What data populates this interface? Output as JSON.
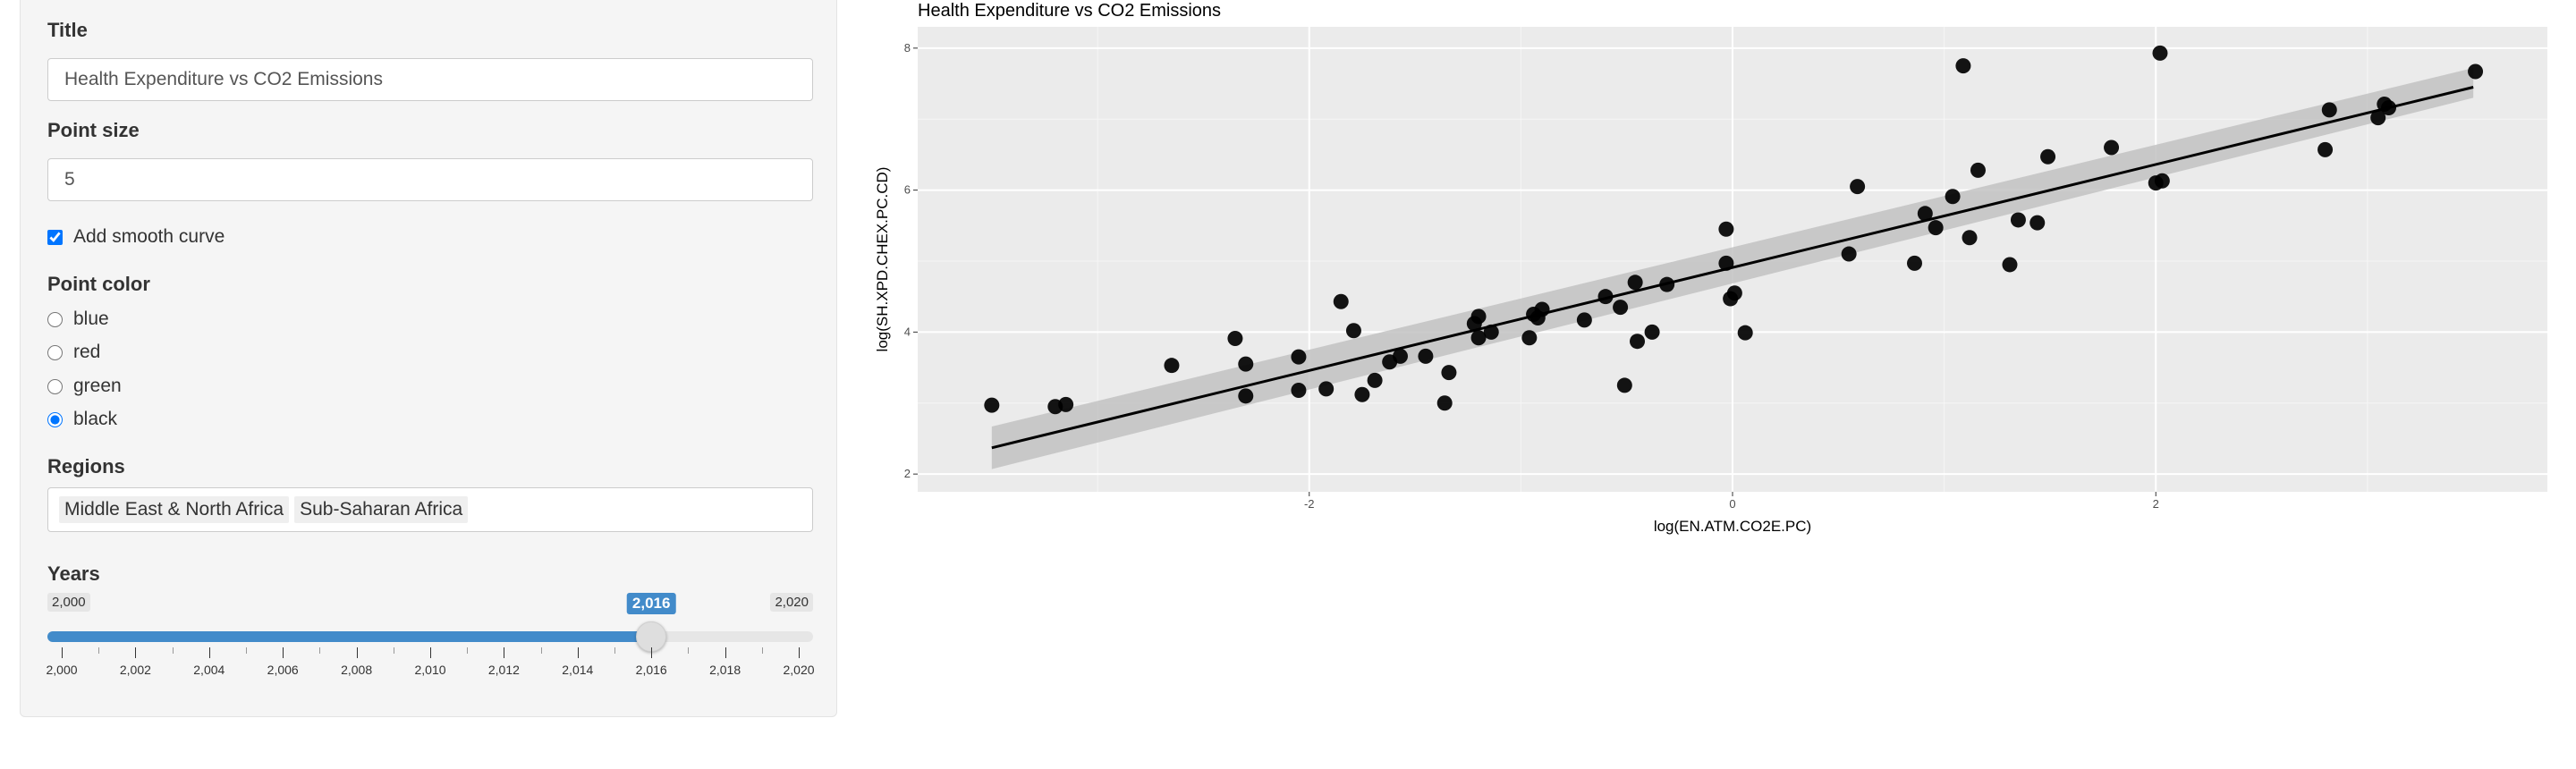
{
  "sidebar": {
    "title_label": "Title",
    "title_value": "Health Expenditure vs CO2 Emissions",
    "point_size_label": "Point size",
    "point_size_value": "5",
    "smooth_label": "Add smooth curve",
    "smooth_checked": true,
    "color_label": "Point color",
    "colors": [
      "blue",
      "red",
      "green",
      "black"
    ],
    "color_selected": "black",
    "regions_label": "Regions",
    "regions": [
      "Middle East & North Africa",
      "Sub-Saharan Africa"
    ],
    "years_label": "Years",
    "years_min": "2,000",
    "years_max": "2,020",
    "years_value": "2,016",
    "year_selected": 2016,
    "year_range": [
      2000,
      2020
    ],
    "year_ticks": [
      "2,000",
      "2,002",
      "2,004",
      "2,006",
      "2,008",
      "2,010",
      "2,012",
      "2,014",
      "2,016",
      "2,018",
      "2,020"
    ]
  },
  "chart_data": {
    "type": "scatter",
    "title": "Health Expenditure vs CO2 Emissions",
    "xlabel": "log(EN.ATM.CO2E.PC)",
    "ylabel": "log(SH.XPD.CHEX.PC.CD)",
    "xlim": [
      -3.85,
      3.85
    ],
    "ylim": [
      1.75,
      8.3
    ],
    "xticks": [
      -2,
      0,
      2
    ],
    "xticklabels": [
      "-2",
      "0",
      "2"
    ],
    "yticks": [
      2,
      4,
      6,
      8
    ],
    "yticklabels": [
      "2",
      "4",
      "6",
      "8"
    ],
    "grid": true,
    "point_color": "#000000",
    "background": "#ebebeb",
    "smooth": {
      "method": "lm",
      "x": [
        -3.5,
        3.5
      ],
      "y": [
        2.37,
        7.45
      ],
      "se_lower": [
        2.07,
        7.3
      ],
      "se_upper": [
        2.67,
        7.72
      ],
      "band_color": "#c2c2c2"
    },
    "points": [
      [
        -3.5,
        2.97
      ],
      [
        -3.2,
        2.95
      ],
      [
        -3.15,
        2.98
      ],
      [
        -2.65,
        3.53
      ],
      [
        -2.35,
        3.91
      ],
      [
        -2.3,
        3.55
      ],
      [
        -2.3,
        3.1
      ],
      [
        -2.05,
        3.18
      ],
      [
        -2.05,
        3.65
      ],
      [
        -1.92,
        3.2
      ],
      [
        -1.85,
        4.43
      ],
      [
        -1.79,
        4.02
      ],
      [
        -1.75,
        3.12
      ],
      [
        -1.69,
        3.32
      ],
      [
        -1.62,
        3.58
      ],
      [
        -1.57,
        3.66
      ],
      [
        -1.45,
        3.66
      ],
      [
        -1.36,
        3.0
      ],
      [
        -1.34,
        3.43
      ],
      [
        -1.22,
        4.12
      ],
      [
        -1.2,
        4.22
      ],
      [
        -1.2,
        3.92
      ],
      [
        -1.14,
        4.0
      ],
      [
        -0.96,
        3.92
      ],
      [
        -0.94,
        4.25
      ],
      [
        -0.92,
        4.2
      ],
      [
        -0.9,
        4.32
      ],
      [
        -0.7,
        4.17
      ],
      [
        -0.6,
        4.5
      ],
      [
        -0.53,
        4.35
      ],
      [
        -0.51,
        3.25
      ],
      [
        -0.46,
        4.7
      ],
      [
        -0.45,
        3.87
      ],
      [
        -0.38,
        4.0
      ],
      [
        -0.31,
        4.67
      ],
      [
        -0.03,
        5.45
      ],
      [
        -0.03,
        4.97
      ],
      [
        -0.01,
        4.47
      ],
      [
        0.01,
        4.55
      ],
      [
        0.06,
        3.99
      ],
      [
        0.55,
        5.1
      ],
      [
        0.59,
        6.05
      ],
      [
        0.86,
        4.97
      ],
      [
        0.91,
        5.67
      ],
      [
        0.96,
        5.47
      ],
      [
        1.04,
        5.91
      ],
      [
        1.09,
        7.75
      ],
      [
        1.12,
        5.33
      ],
      [
        1.16,
        6.28
      ],
      [
        1.31,
        4.95
      ],
      [
        1.35,
        5.58
      ],
      [
        1.44,
        5.54
      ],
      [
        1.49,
        6.47
      ],
      [
        1.79,
        6.6
      ],
      [
        2.0,
        6.1
      ],
      [
        2.03,
        6.13
      ],
      [
        2.02,
        7.93
      ],
      [
        2.8,
        6.57
      ],
      [
        2.82,
        7.13
      ],
      [
        3.05,
        7.02
      ],
      [
        3.08,
        7.21
      ],
      [
        3.1,
        7.16
      ],
      [
        3.51,
        7.67
      ]
    ]
  }
}
